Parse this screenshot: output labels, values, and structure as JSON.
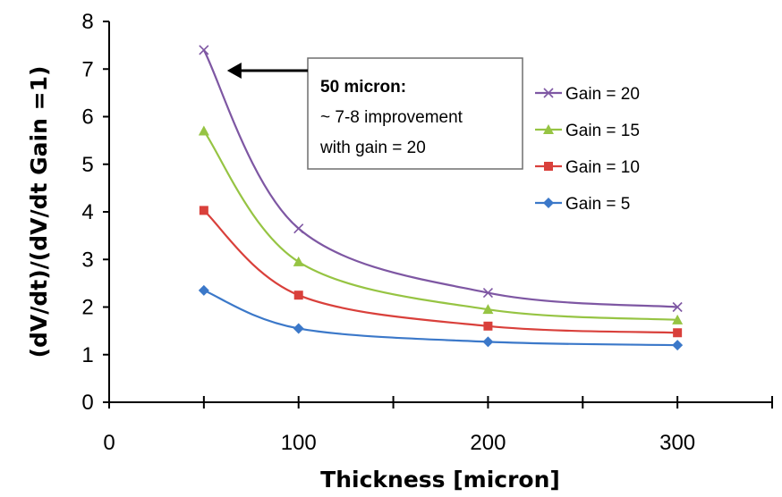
{
  "chart_data": {
    "type": "line",
    "title": "",
    "xlabel": "Thickness [micron]",
    "ylabel": "(dV/dt)/(dV/dt Gain =1)",
    "xlim": [
      0,
      350
    ],
    "ylim": [
      0,
      8
    ],
    "xticks": [
      0,
      100,
      200,
      300
    ],
    "yticks": [
      0,
      1,
      2,
      3,
      4,
      5,
      6,
      7,
      8
    ],
    "grid": false,
    "legend_position": "right",
    "x": [
      50,
      100,
      200,
      300
    ],
    "series": [
      {
        "name": "Gain = 20",
        "color": "#7e57a3",
        "marker": "x",
        "values": [
          7.4,
          3.65,
          2.3,
          2.0
        ]
      },
      {
        "name": "Gain = 15",
        "color": "#96c443",
        "marker": "triangle",
        "values": [
          5.7,
          2.95,
          1.95,
          1.73
        ]
      },
      {
        "name": "Gain = 10",
        "color": "#d9403b",
        "marker": "square",
        "values": [
          4.03,
          2.25,
          1.6,
          1.46
        ]
      },
      {
        "name": "Gain = 5",
        "color": "#3b78c9",
        "marker": "diamond",
        "values": [
          2.35,
          1.55,
          1.27,
          1.2
        ]
      }
    ],
    "annotation": {
      "line1": "50 micron:",
      "line2": "~ 7-8 improvement",
      "line3": "with gain = 20",
      "arrow_target_x": 50,
      "arrow_target_y": 6.95
    }
  }
}
